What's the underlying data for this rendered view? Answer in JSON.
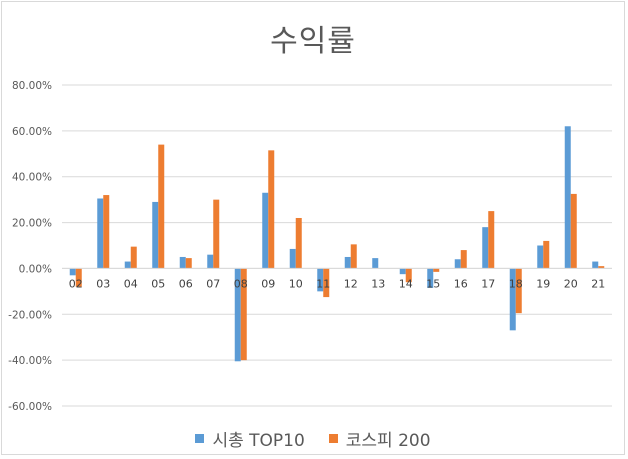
{
  "chart_data": {
    "type": "bar",
    "title": "수익률",
    "categories": [
      "02",
      "03",
      "04",
      "05",
      "06",
      "07",
      "08",
      "09",
      "10",
      "11",
      "12",
      "13",
      "14",
      "15",
      "16",
      "17",
      "18",
      "19",
      "20",
      "21"
    ],
    "series": [
      {
        "name": "시총 TOP10",
        "color": "#5b9bd5",
        "values": [
          -3,
          30.5,
          3,
          29,
          5,
          6,
          -40.5,
          33,
          8.5,
          -10,
          5,
          4.5,
          -2.5,
          -8.5,
          4,
          18,
          -27,
          10,
          62,
          3
        ]
      },
      {
        "name": "코스피 200",
        "color": "#ed7d31",
        "values": [
          -8,
          32,
          9.5,
          54,
          4.5,
          30,
          -40,
          51.5,
          22,
          -12.5,
          10.5,
          0,
          -6,
          -1.5,
          8,
          25,
          -19.5,
          12,
          32.5,
          1
        ]
      }
    ],
    "ylim": [
      -60,
      80
    ],
    "ytick_step": 20,
    "ytick_format": "percent_2dp",
    "grid": true,
    "legend_position": "bottom",
    "xlabel": "",
    "ylabel": ""
  }
}
